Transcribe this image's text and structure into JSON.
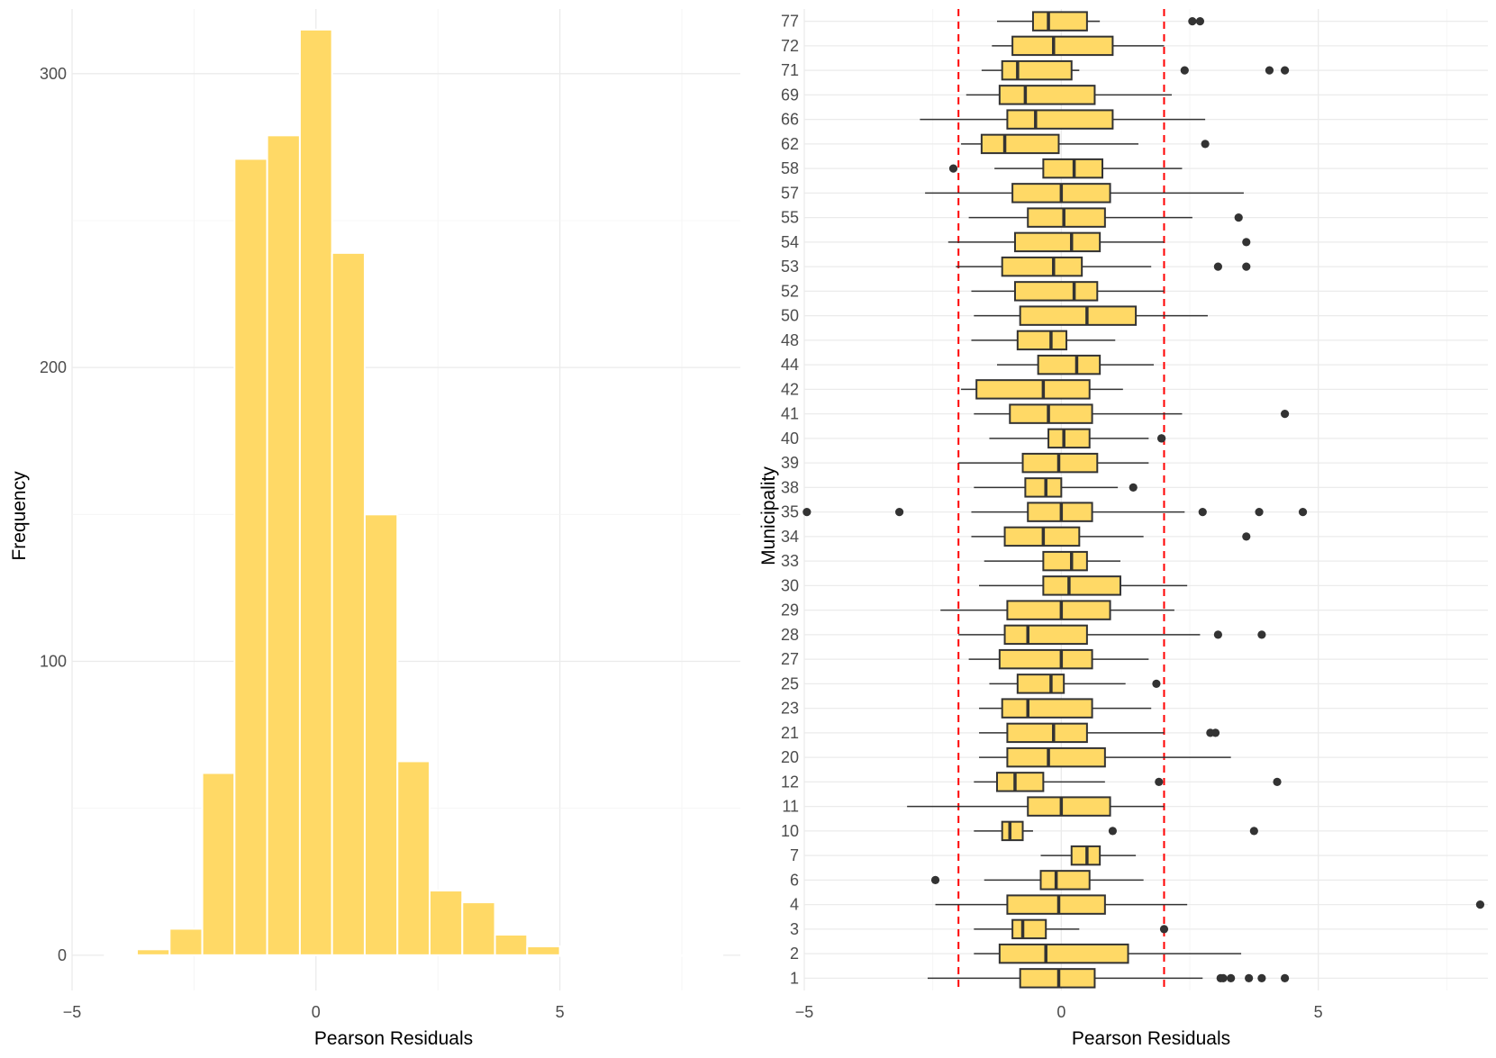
{
  "chart_data": [
    {
      "type": "bar",
      "subtype": "histogram",
      "xlabel": "Pearson Residuals",
      "ylabel": "Frequency",
      "xlim": [
        -5,
        8.7
      ],
      "ylim": [
        -12,
        322
      ],
      "x_ticks": [
        -5,
        0,
        5
      ],
      "x_tick_labels": [
        "−5",
        "0",
        "5"
      ],
      "y_ticks": [
        0,
        100,
        200,
        300
      ],
      "y_tick_labels": [
        "0",
        "100",
        "200",
        "300"
      ],
      "grid": true,
      "bar_color": "#FFD966",
      "bins": [
        {
          "x0": -4.33,
          "x1": -3.67,
          "count": 0
        },
        {
          "x0": -3.67,
          "x1": -3.0,
          "count": 2
        },
        {
          "x0": -3.0,
          "x1": -2.33,
          "count": 9
        },
        {
          "x0": -2.33,
          "x1": -1.67,
          "count": 62
        },
        {
          "x0": -1.67,
          "x1": -1.0,
          "count": 271
        },
        {
          "x0": -1.0,
          "x1": -0.33,
          "count": 279
        },
        {
          "x0": -0.33,
          "x1": 0.33,
          "count": 315
        },
        {
          "x0": 0.33,
          "x1": 1.0,
          "count": 239
        },
        {
          "x0": 1.0,
          "x1": 1.67,
          "count": 150
        },
        {
          "x0": 1.67,
          "x1": 2.33,
          "count": 66
        },
        {
          "x0": 2.33,
          "x1": 3.0,
          "count": 22
        },
        {
          "x0": 3.0,
          "x1": 3.67,
          "count": 18
        },
        {
          "x0": 3.67,
          "x1": 4.33,
          "count": 7
        },
        {
          "x0": 4.33,
          "x1": 5.0,
          "count": 3
        },
        {
          "x0": 5.0,
          "x1": 5.67,
          "count": 0
        },
        {
          "x0": 5.67,
          "x1": 6.33,
          "count": 0
        },
        {
          "x0": 6.33,
          "x1": 7.0,
          "count": 0
        },
        {
          "x0": 7.0,
          "x1": 7.67,
          "count": 0
        },
        {
          "x0": 7.67,
          "x1": 8.33,
          "count": 0
        }
      ]
    },
    {
      "type": "boxplot",
      "orientation": "horizontal",
      "xlabel": "Pearson Residuals",
      "ylabel": "Municipality",
      "xlim": [
        -5,
        8.3
      ],
      "x_ticks": [
        -5,
        0,
        5
      ],
      "x_tick_labels": [
        "−5",
        "0",
        "5"
      ],
      "grid": true,
      "box_color": "#FFD966",
      "reference_lines": [
        -2,
        2
      ],
      "reference_line_color": "#FF0000",
      "reference_line_style": "dashed",
      "categories": [
        "1",
        "2",
        "3",
        "4",
        "6",
        "7",
        "10",
        "11",
        "12",
        "20",
        "21",
        "23",
        "25",
        "27",
        "28",
        "29",
        "30",
        "33",
        "34",
        "35",
        "38",
        "39",
        "40",
        "41",
        "42",
        "44",
        "48",
        "50",
        "52",
        "53",
        "54",
        "55",
        "57",
        "58",
        "62",
        "66",
        "69",
        "71",
        "72",
        "77"
      ],
      "boxes": [
        {
          "label": "1",
          "min": -2.6,
          "q1": -0.8,
          "median": -0.05,
          "q3": 0.65,
          "max": 2.75,
          "outliers": [
            3.1,
            3.15,
            3.3,
            3.65,
            3.9,
            4.35
          ]
        },
        {
          "label": "2",
          "min": -1.7,
          "q1": -1.2,
          "median": -0.3,
          "q3": 1.3,
          "max": 3.5,
          "outliers": []
        },
        {
          "label": "3",
          "min": -1.7,
          "q1": -0.95,
          "median": -0.75,
          "q3": -0.3,
          "max": 0.35,
          "outliers": [
            2.0
          ]
        },
        {
          "label": "4",
          "min": -2.45,
          "q1": -1.05,
          "median": -0.05,
          "q3": 0.85,
          "max": 2.45,
          "outliers": [
            8.15
          ]
        },
        {
          "label": "6",
          "min": -1.5,
          "q1": -0.4,
          "median": -0.1,
          "q3": 0.55,
          "max": 1.6,
          "outliers": [
            -2.45
          ]
        },
        {
          "label": "7",
          "min": -0.4,
          "q1": 0.2,
          "median": 0.5,
          "q3": 0.75,
          "max": 1.45,
          "outliers": []
        },
        {
          "label": "10",
          "min": -1.7,
          "q1": -1.15,
          "median": -1.0,
          "q3": -0.75,
          "max": -0.55,
          "outliers": [
            1.0,
            3.75
          ]
        },
        {
          "label": "11",
          "min": -3.0,
          "q1": -0.65,
          "median": 0.0,
          "q3": 0.95,
          "max": 2.0,
          "outliers": []
        },
        {
          "label": "12",
          "min": -1.7,
          "q1": -1.25,
          "median": -0.9,
          "q3": -0.35,
          "max": 0.85,
          "outliers": [
            1.9,
            4.2
          ]
        },
        {
          "label": "20",
          "min": -1.6,
          "q1": -1.05,
          "median": -0.25,
          "q3": 0.85,
          "max": 3.3,
          "outliers": []
        },
        {
          "label": "21",
          "min": -1.6,
          "q1": -1.05,
          "median": -0.15,
          "q3": 0.5,
          "max": 2.0,
          "outliers": [
            2.9,
            3.0
          ]
        },
        {
          "label": "23",
          "min": -1.6,
          "q1": -1.15,
          "median": -0.65,
          "q3": 0.6,
          "max": 1.75,
          "outliers": []
        },
        {
          "label": "25",
          "min": -1.4,
          "q1": -0.85,
          "median": -0.2,
          "q3": 0.05,
          "max": 1.25,
          "outliers": [
            1.85
          ]
        },
        {
          "label": "27",
          "min": -1.8,
          "q1": -1.2,
          "median": 0.0,
          "q3": 0.6,
          "max": 1.7,
          "outliers": []
        },
        {
          "label": "28",
          "min": -2.0,
          "q1": -1.1,
          "median": -0.65,
          "q3": 0.5,
          "max": 2.7,
          "outliers": [
            3.05,
            3.9
          ]
        },
        {
          "label": "29",
          "min": -2.35,
          "q1": -1.05,
          "median": 0.0,
          "q3": 0.95,
          "max": 2.2,
          "outliers": []
        },
        {
          "label": "30",
          "min": -1.6,
          "q1": -0.35,
          "median": 0.15,
          "q3": 1.15,
          "max": 2.45,
          "outliers": []
        },
        {
          "label": "33",
          "min": -1.5,
          "q1": -0.35,
          "median": 0.2,
          "q3": 0.5,
          "max": 1.15,
          "outliers": []
        },
        {
          "label": "34",
          "min": -1.75,
          "q1": -1.1,
          "median": -0.35,
          "q3": 0.35,
          "max": 1.6,
          "outliers": [
            3.6
          ]
        },
        {
          "label": "35",
          "min": -1.75,
          "q1": -0.65,
          "median": 0.0,
          "q3": 0.6,
          "max": 2.4,
          "outliers": [
            -4.95,
            -3.15,
            2.75,
            3.85,
            4.7
          ]
        },
        {
          "label": "38",
          "min": -1.7,
          "q1": -0.7,
          "median": -0.3,
          "q3": 0.0,
          "max": 1.1,
          "outliers": [
            1.4
          ]
        },
        {
          "label": "39",
          "min": -2.0,
          "q1": -0.75,
          "median": -0.05,
          "q3": 0.7,
          "max": 1.7,
          "outliers": []
        },
        {
          "label": "40",
          "min": -1.4,
          "q1": -0.25,
          "median": 0.05,
          "q3": 0.55,
          "max": 1.7,
          "outliers": [
            1.95,
            1.95
          ]
        },
        {
          "label": "41",
          "min": -1.7,
          "q1": -1.0,
          "median": -0.25,
          "q3": 0.6,
          "max": 2.35,
          "outliers": [
            4.35
          ]
        },
        {
          "label": "42",
          "min": -1.95,
          "q1": -1.65,
          "median": -0.35,
          "q3": 0.55,
          "max": 1.2,
          "outliers": []
        },
        {
          "label": "44",
          "min": -1.25,
          "q1": -0.45,
          "median": 0.3,
          "q3": 0.75,
          "max": 1.8,
          "outliers": []
        },
        {
          "label": "48",
          "min": -1.75,
          "q1": -0.85,
          "median": -0.2,
          "q3": 0.1,
          "max": 1.05,
          "outliers": []
        },
        {
          "label": "50",
          "min": -1.7,
          "q1": -0.8,
          "median": 0.5,
          "q3": 1.45,
          "max": 2.85,
          "outliers": []
        },
        {
          "label": "52",
          "min": -1.75,
          "q1": -0.9,
          "median": 0.25,
          "q3": 0.7,
          "max": 2.0,
          "outliers": []
        },
        {
          "label": "53",
          "min": -2.05,
          "q1": -1.15,
          "median": -0.15,
          "q3": 0.4,
          "max": 1.75,
          "outliers": [
            3.05,
            3.6
          ]
        },
        {
          "label": "54",
          "min": -2.2,
          "q1": -0.9,
          "median": 0.2,
          "q3": 0.75,
          "max": 2.0,
          "outliers": [
            3.6
          ]
        },
        {
          "label": "55",
          "min": -1.8,
          "q1": -0.65,
          "median": 0.05,
          "q3": 0.85,
          "max": 2.55,
          "outliers": [
            3.45
          ]
        },
        {
          "label": "57",
          "min": -2.65,
          "q1": -0.95,
          "median": 0.0,
          "q3": 0.95,
          "max": 3.55,
          "outliers": []
        },
        {
          "label": "58",
          "min": -1.3,
          "q1": -0.35,
          "median": 0.25,
          "q3": 0.8,
          "max": 2.35,
          "outliers": [
            -2.1
          ]
        },
        {
          "label": "62",
          "min": -1.95,
          "q1": -1.55,
          "median": -1.1,
          "q3": -0.05,
          "max": 1.5,
          "outliers": [
            2.8
          ]
        },
        {
          "label": "66",
          "min": -2.75,
          "q1": -1.05,
          "median": -0.5,
          "q3": 1.0,
          "max": 2.8,
          "outliers": []
        },
        {
          "label": "69",
          "min": -1.85,
          "q1": -1.2,
          "median": -0.7,
          "q3": 0.65,
          "max": 2.15,
          "outliers": []
        },
        {
          "label": "71",
          "min": -1.55,
          "q1": -1.15,
          "median": -0.85,
          "q3": 0.2,
          "max": 0.35,
          "outliers": [
            2.4,
            4.05,
            4.35
          ]
        },
        {
          "label": "72",
          "min": -1.35,
          "q1": -0.95,
          "median": -0.15,
          "q3": 1.0,
          "max": 2.0,
          "outliers": []
        },
        {
          "label": "77",
          "min": -1.25,
          "q1": -0.55,
          "median": -0.25,
          "q3": 0.5,
          "max": 0.75,
          "outliers": [
            2.55,
            2.7
          ]
        }
      ]
    }
  ]
}
